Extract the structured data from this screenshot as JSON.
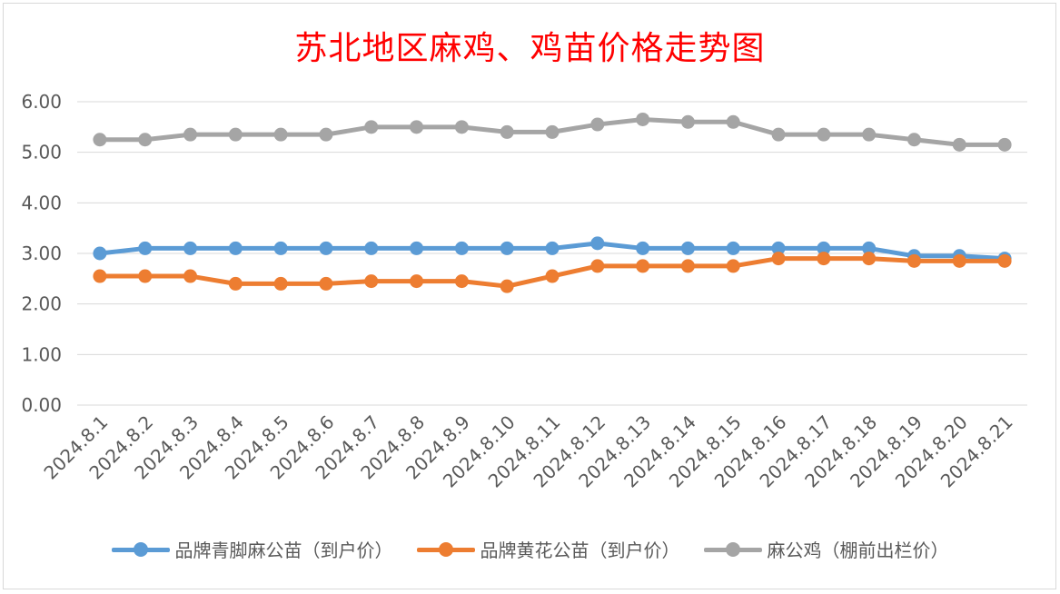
{
  "chart_data": {
    "type": "line",
    "title": "苏北地区麻鸡、鸡苗价格走势图",
    "categories": [
      "2024.8.1",
      "2024.8.2",
      "2024.8.3",
      "2024.8.4",
      "2024.8.5",
      "2024.8.6",
      "2024.8.7",
      "2024.8.8",
      "2024.8.9",
      "2024.8.10",
      "2024.8.11",
      "2024.8.12",
      "2024.8.13",
      "2024.8.14",
      "2024.8.15",
      "2024.8.16",
      "2024.8.17",
      "2024.8.18",
      "2024.8.19",
      "2024.8.20",
      "2024.8.21"
    ],
    "yticks": [
      "0.00",
      "1.00",
      "2.00",
      "3.00",
      "4.00",
      "5.00",
      "6.00"
    ],
    "ylim": [
      0,
      6
    ],
    "grid": true,
    "legend_position": "bottom",
    "series": [
      {
        "name": "品牌青脚麻公苗（到户价）",
        "color": "#5b9bd5",
        "values": [
          3.0,
          3.1,
          3.1,
          3.1,
          3.1,
          3.1,
          3.1,
          3.1,
          3.1,
          3.1,
          3.1,
          3.2,
          3.1,
          3.1,
          3.1,
          3.1,
          3.1,
          3.1,
          2.95,
          2.95,
          2.9
        ]
      },
      {
        "name": "品牌黄花公苗（到户价）",
        "color": "#ed7d31",
        "values": [
          2.55,
          2.55,
          2.55,
          2.4,
          2.4,
          2.4,
          2.45,
          2.45,
          2.45,
          2.35,
          2.55,
          2.75,
          2.75,
          2.75,
          2.75,
          2.9,
          2.9,
          2.9,
          2.85,
          2.85,
          2.85
        ]
      },
      {
        "name": "麻公鸡（棚前出栏价）",
        "color": "#a5a5a5",
        "values": [
          5.25,
          5.25,
          5.35,
          5.35,
          5.35,
          5.35,
          5.5,
          5.5,
          5.5,
          5.4,
          5.4,
          5.55,
          5.65,
          5.6,
          5.6,
          5.35,
          5.35,
          5.35,
          5.25,
          5.15,
          5.15
        ]
      }
    ]
  }
}
